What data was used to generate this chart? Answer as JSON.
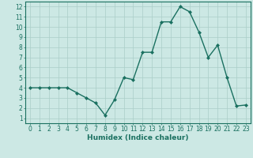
{
  "x": [
    0,
    1,
    2,
    3,
    4,
    5,
    6,
    7,
    8,
    9,
    10,
    11,
    12,
    13,
    14,
    15,
    16,
    17,
    18,
    19,
    20,
    21,
    22,
    23
  ],
  "y": [
    4,
    4,
    4,
    4,
    4,
    3.5,
    3,
    2.5,
    1.3,
    2.8,
    5,
    4.8,
    7.5,
    7.5,
    10.5,
    10.5,
    12,
    11.5,
    9.5,
    7,
    8.2,
    5,
    2.2,
    2.3
  ],
  "line_color": "#1a7060",
  "marker": "D",
  "marker_size": 2,
  "linewidth": 1.0,
  "bg_color": "#cce8e4",
  "grid_color": "#aacec8",
  "xlabel": "Humidex (Indice chaleur)",
  "xlim": [
    -0.5,
    23.5
  ],
  "ylim": [
    0.5,
    12.5
  ],
  "yticks": [
    1,
    2,
    3,
    4,
    5,
    6,
    7,
    8,
    9,
    10,
    11,
    12
  ],
  "xticks": [
    0,
    1,
    2,
    3,
    4,
    5,
    6,
    7,
    8,
    9,
    10,
    11,
    12,
    13,
    14,
    15,
    16,
    17,
    18,
    19,
    20,
    21,
    22,
    23
  ],
  "tick_fontsize": 5.5,
  "xlabel_fontsize": 6.5,
  "xlabel_color": "#1a7060",
  "tick_color": "#1a7060",
  "axis_color": "#1a7060"
}
